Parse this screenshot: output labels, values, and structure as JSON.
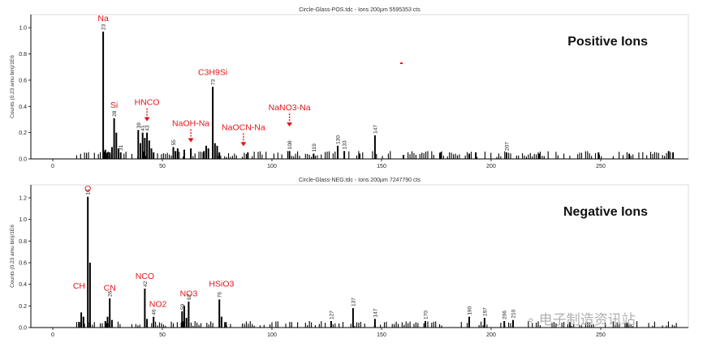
{
  "colors": {
    "bars": "#000000",
    "annotation": "#e8141b",
    "axis": "#000000",
    "watermark": "#b0b0b0"
  },
  "watermark": {
    "icon": "wechat-icon",
    "text": "电子制造资讯站"
  },
  "chart_data": [
    {
      "type": "bar",
      "title": "Circle-Glass-POS.tdc - Ions 200µm 5595353 cts",
      "subtitle": "Positive Ions",
      "xlabel": "",
      "ylabel": "Counts (0.23 amu bin)/1E6",
      "xlim": [
        -10,
        290
      ],
      "ylim": [
        0,
        1.1
      ],
      "xticks": [
        0,
        50,
        100,
        150,
        200,
        250
      ],
      "yticks": [
        0.0,
        0.2,
        0.4,
        0.6,
        0.8,
        1.0
      ],
      "grid": false,
      "peaks": [
        {
          "x": 23,
          "y": 0.97,
          "label": "23"
        },
        {
          "x": 28,
          "y": 0.31,
          "label": "28"
        },
        {
          "x": 29,
          "y": 0.2
        },
        {
          "x": 30,
          "y": 0.08
        },
        {
          "x": 31,
          "y": 0.05,
          "label": "31"
        },
        {
          "x": 24,
          "y": 0.07
        },
        {
          "x": 25,
          "y": 0.05
        },
        {
          "x": 39,
          "y": 0.22,
          "label": "39"
        },
        {
          "x": 40,
          "y": 0.12
        },
        {
          "x": 41,
          "y": 0.2,
          "label": "41"
        },
        {
          "x": 42,
          "y": 0.16
        },
        {
          "x": 43,
          "y": 0.2,
          "label": "43"
        },
        {
          "x": 44,
          "y": 0.14
        },
        {
          "x": 45,
          "y": 0.08
        },
        {
          "x": 46,
          "y": 0.05
        },
        {
          "x": 27,
          "y": 0.09
        },
        {
          "x": 26,
          "y": 0.05
        },
        {
          "x": 55,
          "y": 0.09,
          "label": "55"
        },
        {
          "x": 56,
          "y": 0.06
        },
        {
          "x": 57,
          "y": 0.08
        },
        {
          "x": 60,
          "y": 0.07
        },
        {
          "x": 63,
          "y": 0.08
        },
        {
          "x": 69,
          "y": 0.06
        },
        {
          "x": 70,
          "y": 0.1
        },
        {
          "x": 71,
          "y": 0.08
        },
        {
          "x": 73,
          "y": 0.55,
          "label": "73"
        },
        {
          "x": 74,
          "y": 0.12
        },
        {
          "x": 75,
          "y": 0.1
        },
        {
          "x": 76,
          "y": 0.05
        },
        {
          "x": 89,
          "y": 0.05
        },
        {
          "x": 108,
          "y": 0.06,
          "label": "108"
        },
        {
          "x": 119,
          "y": 0.04,
          "label": "119"
        },
        {
          "x": 130,
          "y": 0.1,
          "label": "130"
        },
        {
          "x": 133,
          "y": 0.06,
          "label": "133"
        },
        {
          "x": 147,
          "y": 0.18,
          "label": "147"
        },
        {
          "x": 207,
          "y": 0.05,
          "label": "207"
        },
        {
          "x": 140,
          "y": 0.04
        },
        {
          "x": 160,
          "y": 0.03
        },
        {
          "x": 177,
          "y": 0.05
        },
        {
          "x": 190,
          "y": 0.04
        },
        {
          "x": 193,
          "y": 0.05
        },
        {
          "x": 222,
          "y": 0.04
        },
        {
          "x": 249,
          "y": 0.05
        },
        {
          "x": 263,
          "y": 0.04
        },
        {
          "x": 281,
          "y": 0.06
        },
        {
          "x": 283,
          "y": 0.05
        }
      ],
      "annotations": [
        {
          "text": "Na",
          "x": 23,
          "y": 1.05,
          "arrow": false
        },
        {
          "text": "Si",
          "x": 28,
          "y": 0.39,
          "arrow": false
        },
        {
          "text": "HNCO",
          "x": 43,
          "y": 0.41,
          "arrow": true
        },
        {
          "text": "NaOH-Na",
          "x": 63,
          "y": 0.25,
          "arrow": true
        },
        {
          "text": "C3H9Si",
          "x": 73,
          "y": 0.64,
          "arrow": false
        },
        {
          "text": "NaOCN-Na",
          "x": 87,
          "y": 0.22,
          "arrow": true
        },
        {
          "text": "NaNO3-Na",
          "x": 108,
          "y": 0.37,
          "arrow": true
        }
      ]
    },
    {
      "type": "bar",
      "title": "Circle-Glass-NEG.tdc - Ions 200µm 7247790 cts",
      "subtitle": "Negative Ions",
      "xlabel": "",
      "ylabel": "Counts (0.23 amu bin)/1E6",
      "xlim": [
        -10,
        290
      ],
      "ylim": [
        0,
        1.32
      ],
      "xticks": [
        0,
        50,
        100,
        150,
        200,
        250
      ],
      "yticks": [
        0.0,
        0.2,
        0.4,
        0.6,
        0.8,
        1.0,
        1.2
      ],
      "grid": false,
      "peaks": [
        {
          "x": 16,
          "y": 1.21,
          "label": "16"
        },
        {
          "x": 17,
          "y": 0.6
        },
        {
          "x": 13,
          "y": 0.14
        },
        {
          "x": 14,
          "y": 0.1
        },
        {
          "x": 12,
          "y": 0.05
        },
        {
          "x": 24,
          "y": 0.06
        },
        {
          "x": 25,
          "y": 0.1
        },
        {
          "x": 26,
          "y": 0.27,
          "label": "26"
        },
        {
          "x": 27,
          "y": 0.07
        },
        {
          "x": 42,
          "y": 0.36,
          "label": "42"
        },
        {
          "x": 43,
          "y": 0.08
        },
        {
          "x": 46,
          "y": 0.1,
          "label": "46"
        },
        {
          "x": 59,
          "y": 0.15,
          "label": "59"
        },
        {
          "x": 60,
          "y": 0.2
        },
        {
          "x": 61,
          "y": 0.09
        },
        {
          "x": 62,
          "y": 0.24,
          "label": "62"
        },
        {
          "x": 76,
          "y": 0.26,
          "label": "76"
        },
        {
          "x": 77,
          "y": 0.1
        },
        {
          "x": 79,
          "y": 0.05
        },
        {
          "x": 127,
          "y": 0.06,
          "label": "127"
        },
        {
          "x": 137,
          "y": 0.18,
          "label": "137"
        },
        {
          "x": 147,
          "y": 0.08,
          "label": "147"
        },
        {
          "x": 170,
          "y": 0.06,
          "label": "170"
        },
        {
          "x": 190,
          "y": 0.1,
          "label": "190"
        },
        {
          "x": 197,
          "y": 0.09,
          "label": "197"
        },
        {
          "x": 206,
          "y": 0.06,
          "label": "206"
        },
        {
          "x": 210,
          "y": 0.07,
          "label": "210"
        },
        {
          "x": 236,
          "y": 0.05
        },
        {
          "x": 262,
          "y": 0.04
        }
      ],
      "annotations": [
        {
          "text": "O",
          "x": 16,
          "y": 1.26,
          "arrow": false
        },
        {
          "text": "CH",
          "x": 12,
          "y": 0.36,
          "arrow": false
        },
        {
          "text": "CN",
          "x": 26,
          "y": 0.34,
          "arrow": false
        },
        {
          "text": "NCO",
          "x": 42,
          "y": 0.45,
          "arrow": false
        },
        {
          "text": "NO2",
          "x": 48,
          "y": 0.19,
          "arrow": false
        },
        {
          "text": "NO3",
          "x": 62,
          "y": 0.29,
          "arrow": false
        },
        {
          "text": "HSiO3",
          "x": 77,
          "y": 0.38,
          "arrow": false
        }
      ]
    }
  ]
}
